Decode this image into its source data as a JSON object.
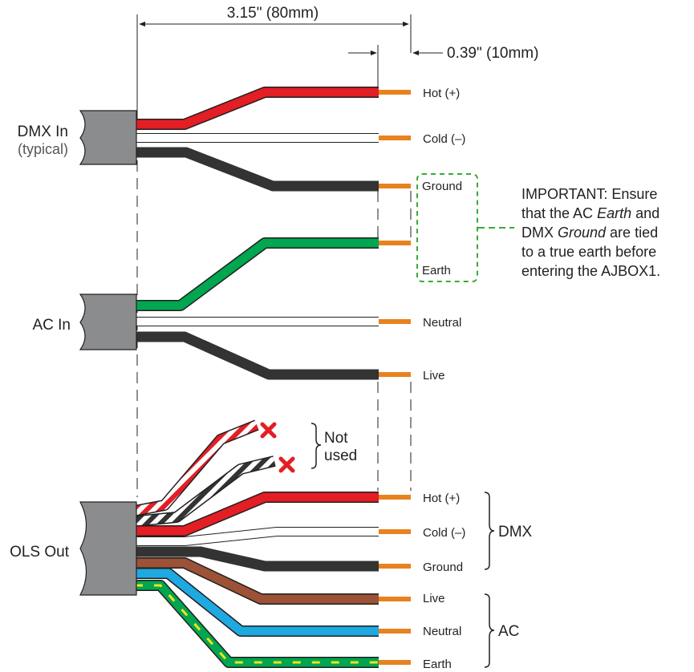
{
  "dimensions": {
    "overall": "3.15\" (80mm)",
    "strip": "0.39\" (10mm)"
  },
  "dmx_in": {
    "label": "DMX In",
    "sublabel": "(typical)",
    "wires": [
      "Hot (+)",
      "Cold (–)",
      "Ground"
    ]
  },
  "ac_in": {
    "label": "AC In",
    "wires": [
      "Earth",
      "Neutral",
      "Live"
    ]
  },
  "ols_out": {
    "label": "OLS Out",
    "not_used": [
      "Not",
      "used"
    ],
    "wires": [
      "Hot (+)",
      "Cold (–)",
      "Ground",
      "Live",
      "Neutral",
      "Earth"
    ],
    "groups": [
      "DMX",
      "AC"
    ]
  },
  "note": {
    "prefix": "IMPORTANT: Ensure",
    "line2_a": "that the AC ",
    "line2_b": "Earth",
    "line2_c": " and",
    "line3_a": "DMX ",
    "line3_b": "Ground",
    "line3_c": " are tied",
    "line4": "to a true earth before",
    "line5": "entering the AJBOX1."
  },
  "colors": {
    "red": "#e31e24",
    "white": "#ffffff",
    "black": "#333333",
    "green": "#00a650",
    "brown": "#9b5236",
    "blue": "#1ea9e1",
    "yellow": "#f5e21a",
    "copper": "#e8821e",
    "cable": "#8a8c8e",
    "dash_green": "#3aaa35",
    "x_mark": "#e31e24"
  }
}
